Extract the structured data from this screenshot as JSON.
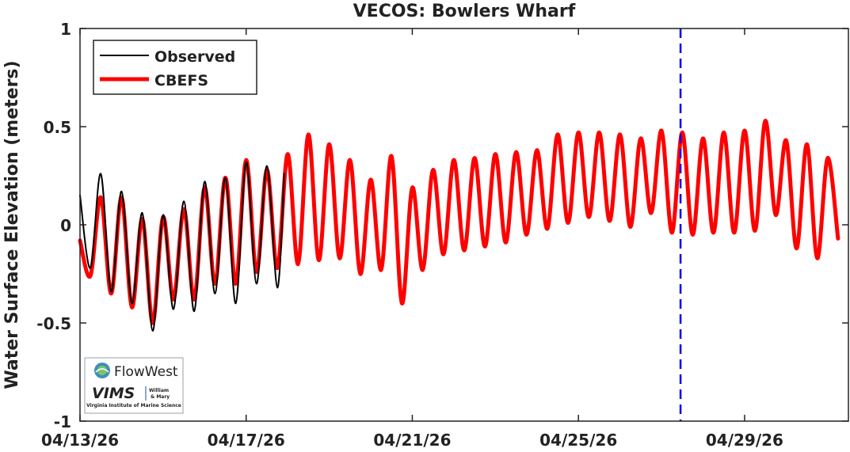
{
  "chart_data": {
    "type": "line",
    "title": "VECOS: Bowlers Wharf",
    "xlabel": "",
    "ylabel": "Water Surface Elevation (meters)",
    "xlim": [
      "2026-04-13",
      "2026-05-01 12:00"
    ],
    "ylim": [
      -1,
      1
    ],
    "x_ticks": [
      "04/13/26",
      "04/17/26",
      "04/21/26",
      "04/25/26",
      "04/29/26"
    ],
    "y_ticks": [
      "1",
      "0.5",
      "0",
      "-0.5",
      "-1"
    ],
    "y_tick_values": [
      1,
      0.5,
      0,
      -0.5,
      -1
    ],
    "grid": false,
    "legend_position": "top-left",
    "forecast_start_marker": "2026-04-27 11:00",
    "series": [
      {
        "name": "Observed",
        "color": "#000000",
        "times": [
          "2026-04-13 00:00",
          "2026-04-13 06:00",
          "2026-04-13 12:00",
          "2026-04-13 18:00",
          "2026-04-14 00:00",
          "2026-04-14 06:00",
          "2026-04-14 12:00",
          "2026-04-14 18:00",
          "2026-04-15 00:00",
          "2026-04-15 06:00",
          "2026-04-15 12:00",
          "2026-04-15 18:00",
          "2026-04-16 00:00",
          "2026-04-16 06:00",
          "2026-04-16 12:00",
          "2026-04-16 18:00",
          "2026-04-17 00:00",
          "2026-04-17 06:00",
          "2026-04-17 12:00",
          "2026-04-17 18:00",
          "2026-04-17 22:00"
        ],
        "values": [
          0.15,
          -0.22,
          0.26,
          -0.34,
          0.17,
          -0.4,
          0.06,
          -0.54,
          0.05,
          -0.43,
          0.12,
          -0.44,
          0.22,
          -0.35,
          0.24,
          -0.4,
          0.32,
          -0.3,
          0.3,
          -0.32,
          0.26
        ]
      },
      {
        "name": "CBEFS",
        "color": "#ff0000",
        "times": [
          "2026-04-13 00:00",
          "2026-04-13 06:00",
          "2026-04-13 12:00",
          "2026-04-13 18:00",
          "2026-04-14 00:00",
          "2026-04-14 06:00",
          "2026-04-14 12:00",
          "2026-04-14 18:00",
          "2026-04-15 00:00",
          "2026-04-15 06:00",
          "2026-04-15 12:00",
          "2026-04-15 18:00",
          "2026-04-16 00:00",
          "2026-04-16 06:00",
          "2026-04-16 12:00",
          "2026-04-16 18:00",
          "2026-04-17 00:00",
          "2026-04-17 06:00",
          "2026-04-17 12:00",
          "2026-04-17 18:00",
          "2026-04-18 00:00",
          "2026-04-18 06:00",
          "2026-04-18 12:00",
          "2026-04-18 18:00",
          "2026-04-19 00:00",
          "2026-04-19 06:00",
          "2026-04-19 12:00",
          "2026-04-19 18:00",
          "2026-04-20 00:00",
          "2026-04-20 06:00",
          "2026-04-20 12:00",
          "2026-04-20 18:00",
          "2026-04-21 00:00",
          "2026-04-21 06:00",
          "2026-04-21 12:00",
          "2026-04-21 18:00",
          "2026-04-22 00:00",
          "2026-04-22 06:00",
          "2026-04-22 12:00",
          "2026-04-22 18:00",
          "2026-04-23 00:00",
          "2026-04-23 06:00",
          "2026-04-23 12:00",
          "2026-04-23 18:00",
          "2026-04-24 00:00",
          "2026-04-24 06:00",
          "2026-04-24 12:00",
          "2026-04-24 18:00",
          "2026-04-25 00:00",
          "2026-04-25 06:00",
          "2026-04-25 12:00",
          "2026-04-25 18:00",
          "2026-04-26 00:00",
          "2026-04-26 06:00",
          "2026-04-26 12:00",
          "2026-04-26 18:00",
          "2026-04-27 00:00",
          "2026-04-27 06:00",
          "2026-04-27 12:00",
          "2026-04-27 18:00",
          "2026-04-28 00:00",
          "2026-04-28 06:00",
          "2026-04-28 12:00",
          "2026-04-28 18:00",
          "2026-04-29 00:00",
          "2026-04-29 06:00",
          "2026-04-29 12:00",
          "2026-04-29 18:00",
          "2026-04-30 00:00",
          "2026-04-30 06:00",
          "2026-04-30 12:00",
          "2026-04-30 18:00",
          "2026-05-01 00:00",
          "2026-05-01 06:00"
        ],
        "values": [
          -0.08,
          -0.26,
          0.14,
          -0.35,
          0.14,
          -0.42,
          0.03,
          -0.5,
          0.04,
          -0.38,
          0.08,
          -0.38,
          0.19,
          -0.3,
          0.24,
          -0.3,
          0.33,
          -0.24,
          0.28,
          -0.22,
          0.36,
          -0.2,
          0.46,
          -0.18,
          0.41,
          -0.17,
          0.33,
          -0.25,
          0.23,
          -0.23,
          0.35,
          -0.4,
          0.19,
          -0.23,
          0.28,
          -0.15,
          0.33,
          -0.13,
          0.34,
          -0.11,
          0.36,
          -0.09,
          0.37,
          -0.05,
          0.38,
          -0.02,
          0.46,
          0.01,
          0.47,
          0.04,
          0.47,
          0.02,
          0.46,
          -0.01,
          0.44,
          0.06,
          0.48,
          -0.04,
          0.47,
          -0.05,
          0.44,
          -0.04,
          0.47,
          -0.04,
          0.48,
          -0.03,
          0.53,
          0.05,
          0.43,
          -0.12,
          0.41,
          -0.17,
          0.34,
          -0.07
        ]
      }
    ]
  },
  "logo": {
    "company": "FlowWest",
    "vims": "VIMS",
    "wm_line1": "William",
    "wm_line2": "& Mary",
    "institute": "Virginia Institute of Marine Science"
  }
}
